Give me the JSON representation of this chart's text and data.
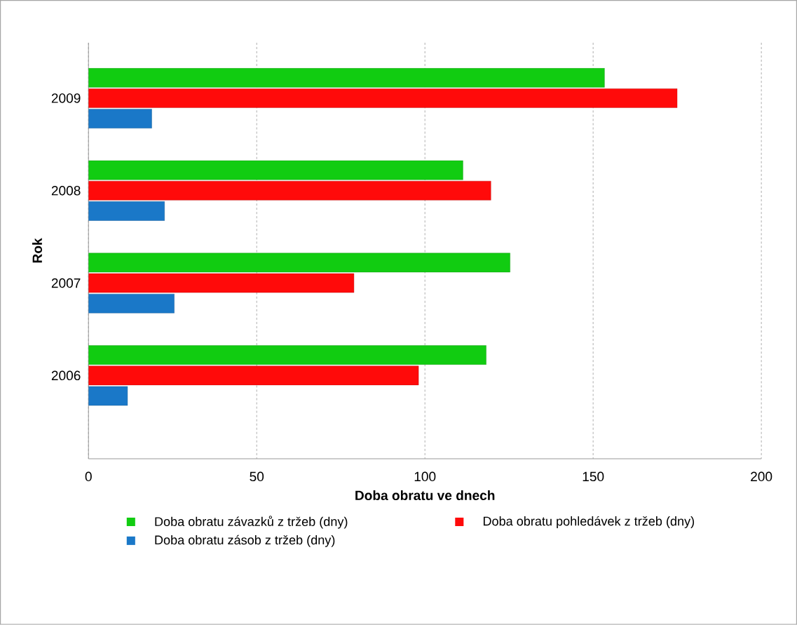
{
  "chart_data": {
    "type": "bar",
    "orientation": "horizontal",
    "xlabel": "Doba obratu ve dnech",
    "ylabel": "Rok",
    "categories": [
      "2009",
      "2008",
      "2007",
      "2006"
    ],
    "series": [
      {
        "name": "Doba obratu závazků z tržeb (dny)",
        "color": "#11cc11",
        "values": [
          153.4,
          111.3,
          125.3,
          118.2
        ]
      },
      {
        "name": "Doba obratu pohledávek z tržeb (dny)",
        "color": "#ff0a0a",
        "values": [
          175,
          119.6,
          78.9,
          98.1
        ]
      },
      {
        "name": "Doba obratu zásob z tržeb (dny)",
        "color": "#1a78c8",
        "values": [
          18.8,
          22.6,
          25.5,
          11.6
        ]
      }
    ],
    "xlim": [
      0,
      200
    ],
    "xticks": [
      0,
      50,
      100,
      150,
      200
    ],
    "grid": "x",
    "legend": "bottom"
  }
}
